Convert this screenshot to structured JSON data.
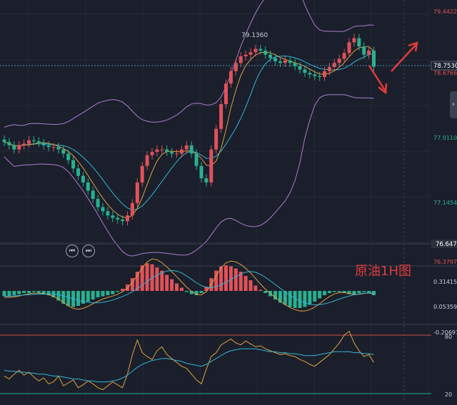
{
  "header": {
    "title_fragment": "原油1H图"
  },
  "annotation": {
    "text": "原油1H图"
  },
  "colors": {
    "bg": "#1a1f2b",
    "up": "#e0525a",
    "down": "#2ab08f",
    "boll": "#b07ad0",
    "ma_fast": "#e0a040",
    "ma_slow": "#34b4d6",
    "arrow": "#e23b3b",
    "rsi_upper": "#d24a4a",
    "rsi_lower": "#1fb08a"
  },
  "labels": {
    "high_marker": "79.1360",
    "price_ticks": [
      "79.4422",
      "78.6766",
      "77.9110",
      "77.1454",
      "76.3797"
    ],
    "current_price": "78.7530",
    "prev_price": "76.6472",
    "macd_ticks": [
      "0.31415",
      "0.05359",
      "-0.20697"
    ],
    "rsi_ticks": [
      "80",
      "20"
    ]
  },
  "chart_data": [
    {
      "type": "candlestick",
      "title": "",
      "ylim": [
        76.3797,
        79.4422
      ],
      "grid": true,
      "indicators": [
        "Bollinger Bands",
        "MA"
      ],
      "close": [
        77.84,
        77.8,
        77.75,
        77.8,
        77.82,
        77.86,
        77.85,
        77.83,
        77.8,
        77.78,
        77.78,
        77.75,
        77.7,
        77.62,
        77.52,
        77.43,
        77.35,
        77.25,
        77.15,
        77.05,
        77.0,
        76.95,
        76.92,
        76.9,
        76.88,
        76.95,
        77.1,
        77.35,
        77.55,
        77.68,
        77.72,
        77.75,
        77.75,
        77.72,
        77.7,
        77.7,
        77.75,
        77.8,
        77.7,
        77.55,
        77.4,
        77.35,
        77.75,
        78.0,
        78.3,
        78.55,
        78.7,
        78.8,
        78.88,
        78.9,
        78.93,
        78.97,
        78.95,
        78.9,
        78.86,
        78.82,
        78.8,
        78.83,
        78.8,
        78.76,
        78.72,
        78.68,
        78.66,
        78.64,
        78.63,
        78.7,
        78.75,
        78.8,
        78.85,
        78.92,
        79.05,
        79.1,
        79.0,
        78.9,
        78.95,
        78.753
      ],
      "high_marker": 79.136,
      "current_price": 78.753
    },
    {
      "type": "bar",
      "title": "MACD",
      "ylim": [
        -0.20697,
        0.31415
      ],
      "series": [
        {
          "values": [
            -0.05,
            -0.05,
            -0.04,
            -0.03,
            -0.02,
            -0.02,
            -0.01,
            -0.02,
            -0.03,
            -0.04,
            -0.06,
            -0.09,
            -0.12,
            -0.14,
            -0.15,
            -0.14,
            -0.12,
            -0.1,
            -0.08,
            -0.06,
            -0.05,
            -0.04,
            -0.03,
            -0.01,
            0.02,
            0.06,
            0.12,
            0.18,
            0.24,
            0.26,
            0.25,
            0.22,
            0.19,
            0.15,
            0.11,
            0.07,
            0.03,
            -0.01,
            -0.03,
            -0.04,
            -0.02,
            0.04,
            0.12,
            0.19,
            0.23,
            0.24,
            0.23,
            0.21,
            0.18,
            0.14,
            0.1,
            0.05,
            0.01,
            -0.02,
            -0.05,
            -0.08,
            -0.11,
            -0.13,
            -0.15,
            -0.16,
            -0.16,
            -0.15,
            -0.13,
            -0.1,
            -0.07,
            -0.04,
            -0.02,
            -0.01,
            -0.01,
            -0.02,
            -0.03,
            -0.03,
            -0.02,
            -0.01,
            -0.02,
            -0.04
          ]
        }
      ]
    },
    {
      "type": "line",
      "title": "RSI",
      "ylim": [
        20,
        80
      ],
      "series": [
        {
          "values": [
            38,
            35,
            40,
            44,
            39,
            42,
            37,
            33,
            36,
            30,
            32,
            38,
            28,
            31,
            34,
            26,
            29,
            33,
            30,
            26,
            24,
            28,
            32,
            29,
            26,
            40,
            60,
            75,
            62,
            58,
            55,
            64,
            68,
            60,
            56,
            52,
            48,
            46,
            40,
            34,
            30,
            45,
            58,
            62,
            70,
            73,
            76,
            72,
            70,
            74,
            71,
            68,
            69,
            66,
            64,
            62,
            60,
            61,
            59,
            58,
            55,
            53,
            50,
            48,
            52,
            56,
            60,
            66,
            72,
            80,
            84,
            72,
            64,
            58,
            60,
            52
          ]
        },
        {
          "values": [
            44,
            43,
            43,
            42,
            42,
            41,
            41,
            40,
            40,
            39,
            38,
            38,
            37,
            36,
            35,
            35,
            34,
            33,
            33,
            32,
            32,
            32,
            33,
            34,
            36,
            39,
            43,
            47,
            50,
            52,
            54,
            55,
            56,
            56,
            55,
            54,
            53,
            51,
            50,
            49,
            48,
            50,
            53,
            56,
            59,
            62,
            64,
            65,
            66,
            66,
            66,
            66,
            65,
            64,
            63,
            63,
            62,
            62,
            61,
            61,
            60,
            59,
            59,
            59,
            60,
            61,
            62,
            63,
            63,
            63,
            63,
            62,
            62,
            61,
            61,
            60
          ]
        }
      ]
    }
  ]
}
